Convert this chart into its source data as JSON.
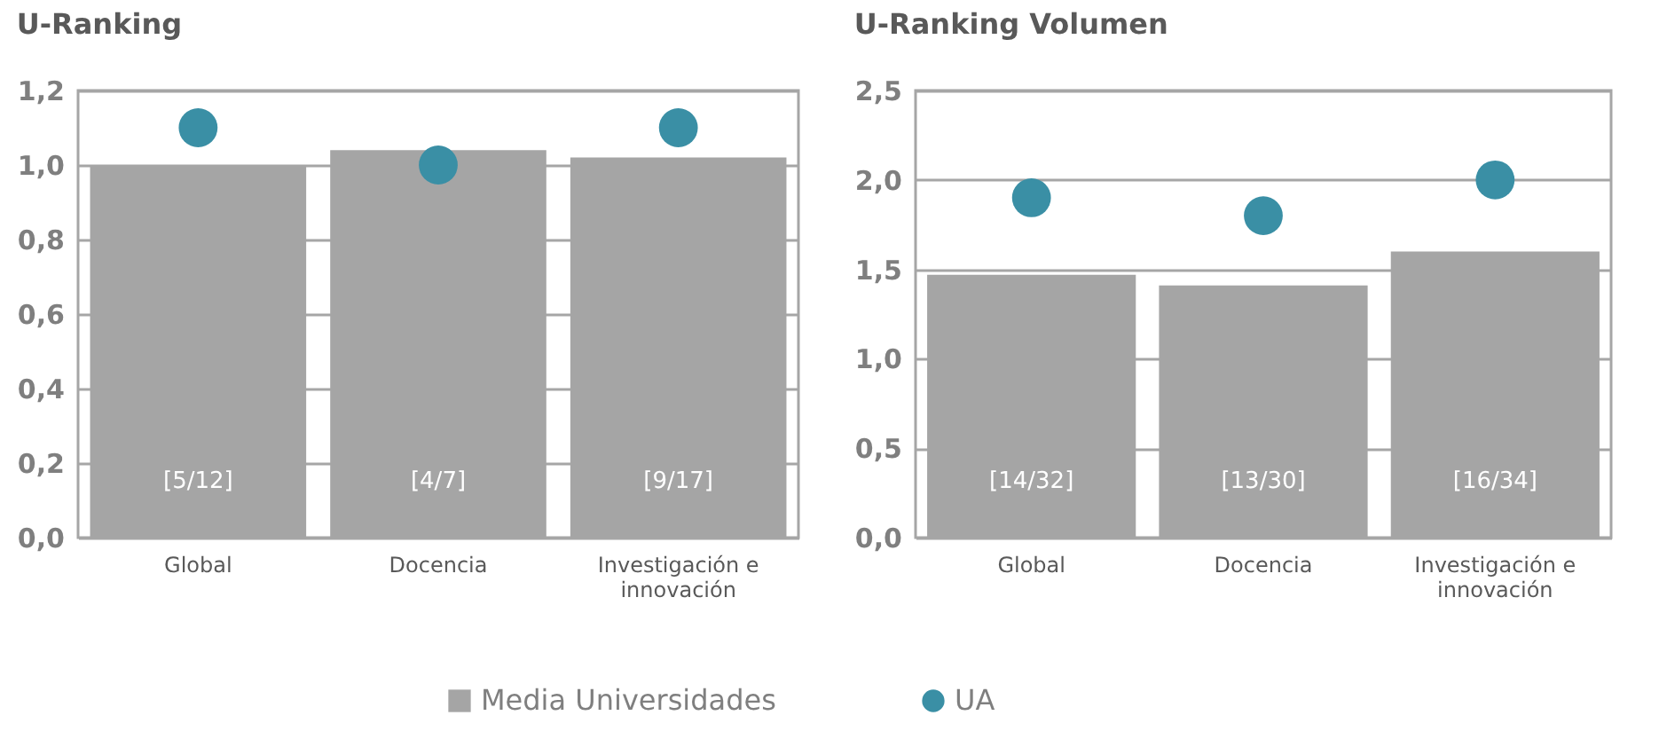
{
  "chart_data": [
    {
      "type": "bar",
      "title": "U-Ranking",
      "categories": [
        "Global",
        "Docencia",
        "Investigación e innovación"
      ],
      "series": [
        {
          "name": "Media Universidades",
          "color": "#a5a5a5",
          "values": [
            1.0,
            1.04,
            1.02
          ]
        },
        {
          "name": "UA",
          "type": "scatter",
          "color": "#3a8fa5",
          "values": [
            1.1,
            1.0,
            1.1
          ]
        }
      ],
      "ylim": [
        0,
        1.2
      ],
      "yticks": [
        {
          "value": 0,
          "label": "0,0"
        },
        {
          "value": 0.2,
          "label": "0,2"
        },
        {
          "value": 0.4,
          "label": "0,4"
        },
        {
          "value": 0.6,
          "label": "0,6"
        },
        {
          "value": 0.8,
          "label": "0,8"
        },
        {
          "value": 1.0,
          "label": "1,0"
        },
        {
          "value": 1.2,
          "label": "1,2"
        }
      ],
      "annotations": [
        "[5/12]",
        "[4/7]",
        "[9/17]"
      ],
      "grid": "y",
      "legend": "bottom",
      "marker": "circle"
    },
    {
      "type": "bar",
      "title": "U-Ranking Volumen",
      "categories": [
        "Global",
        "Docencia",
        "Investigación e innovación"
      ],
      "series": [
        {
          "name": "Media Universidades",
          "color": "#a5a5a5",
          "values": [
            1.47,
            1.41,
            1.6
          ]
        },
        {
          "name": "UA",
          "type": "scatter",
          "color": "#3a8fa5",
          "values": [
            1.9,
            1.8,
            2.0
          ]
        }
      ],
      "ylim": [
        0,
        2.5
      ],
      "yticks": [
        {
          "value": 0,
          "label": "0,0"
        },
        {
          "value": 0.5,
          "label": "0,5"
        },
        {
          "value": 1.0,
          "label": "1,0"
        },
        {
          "value": 1.5,
          "label": "1,5"
        },
        {
          "value": 2.0,
          "label": "2,0"
        },
        {
          "value": 2.5,
          "label": "2,5"
        }
      ],
      "annotations": [
        "[14/32]",
        "[13/30]",
        "[16/34]"
      ],
      "grid": "y",
      "legend": "bottom",
      "marker": "circle"
    }
  ]
}
